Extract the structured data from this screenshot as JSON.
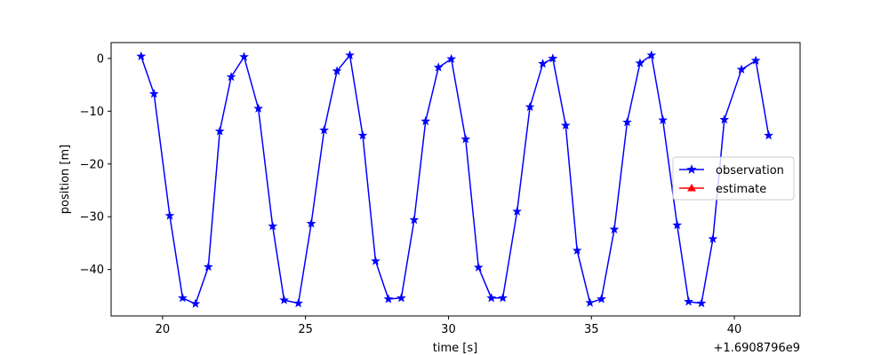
{
  "chart_data": {
    "type": "line",
    "xlabel": "time [s]",
    "ylabel": "position [m]",
    "x_offset_label": "+1.6908796e9",
    "xlim": [
      18.2,
      42.3
    ],
    "ylim": [
      -48.8,
      3.0
    ],
    "xticks": [
      20,
      25,
      30,
      35,
      40
    ],
    "yticks": [
      0,
      -10,
      -20,
      -30,
      -40
    ],
    "grid": false,
    "legend": {
      "placement": "center-right",
      "entries": [
        "observation",
        "estimate"
      ]
    },
    "series": [
      {
        "name": "observation",
        "color": "#0000ff",
        "marker": "star",
        "x": [
          19.25,
          19.7,
          20.25,
          20.7,
          21.15,
          21.6,
          22.0,
          22.4,
          22.85,
          23.35,
          23.85,
          24.25,
          24.75,
          25.2,
          25.65,
          26.1,
          26.55,
          27.0,
          27.45,
          27.9,
          28.35,
          28.8,
          29.2,
          29.65,
          30.1,
          30.6,
          31.05,
          31.5,
          31.9,
          32.4,
          32.85,
          33.3,
          33.65,
          34.1,
          34.5,
          34.95,
          35.35,
          35.8,
          36.25,
          36.7,
          37.1,
          37.5,
          38.0,
          38.4,
          38.85,
          39.25,
          39.65,
          40.25,
          40.75,
          41.2
        ],
        "y": [
          0.4,
          -6.7,
          -29.8,
          -45.4,
          -46.5,
          -39.5,
          -13.8,
          -3.5,
          0.3,
          -9.5,
          -31.8,
          -45.8,
          -46.4,
          -31.3,
          -13.6,
          -2.4,
          0.6,
          -14.6,
          -38.4,
          -45.6,
          -45.4,
          -30.6,
          -11.9,
          -1.7,
          -0.1,
          -15.3,
          -39.6,
          -45.4,
          -45.4,
          -29.0,
          -9.2,
          -1.0,
          0.0,
          -12.7,
          -36.4,
          -46.3,
          -45.6,
          -32.4,
          -12.1,
          -0.9,
          0.6,
          -11.7,
          -31.6,
          -46.1,
          -46.4,
          -34.2,
          -11.6,
          -2.1,
          -0.4,
          -14.6
        ]
      },
      {
        "name": "estimate",
        "color": "#ff0000",
        "marker": "triangle",
        "x": [],
        "y": []
      }
    ]
  }
}
